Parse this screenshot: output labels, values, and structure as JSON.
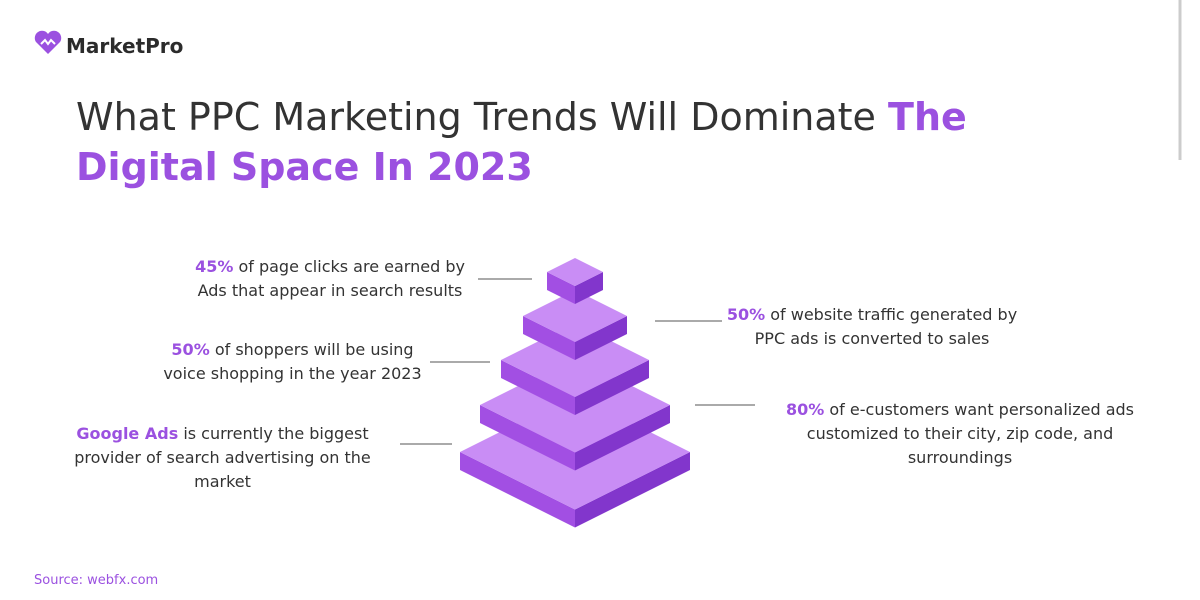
{
  "brand": "MarketPro",
  "title": {
    "plain": "What PPC Marketing Trends Will Dominate",
    "highlight": "The Digital Space In 2023"
  },
  "facts": [
    {
      "highlight": "45%",
      "text": "of page clicks are earned by Ads that appear in search results"
    },
    {
      "highlight": "50%",
      "text": "of website traffic generated by PPC ads is converted to sales"
    },
    {
      "highlight": "50%",
      "text": "of shoppers will be using voice shopping in the year 2023"
    },
    {
      "highlight": "80%",
      "text": "of e-customers want personalized ads customized to their city, zip code, and surroundings"
    },
    {
      "highlight": "Google Ads",
      "text": "is currently the biggest provider of search advertising on the market"
    }
  ],
  "source": "Source: webfx.com"
}
